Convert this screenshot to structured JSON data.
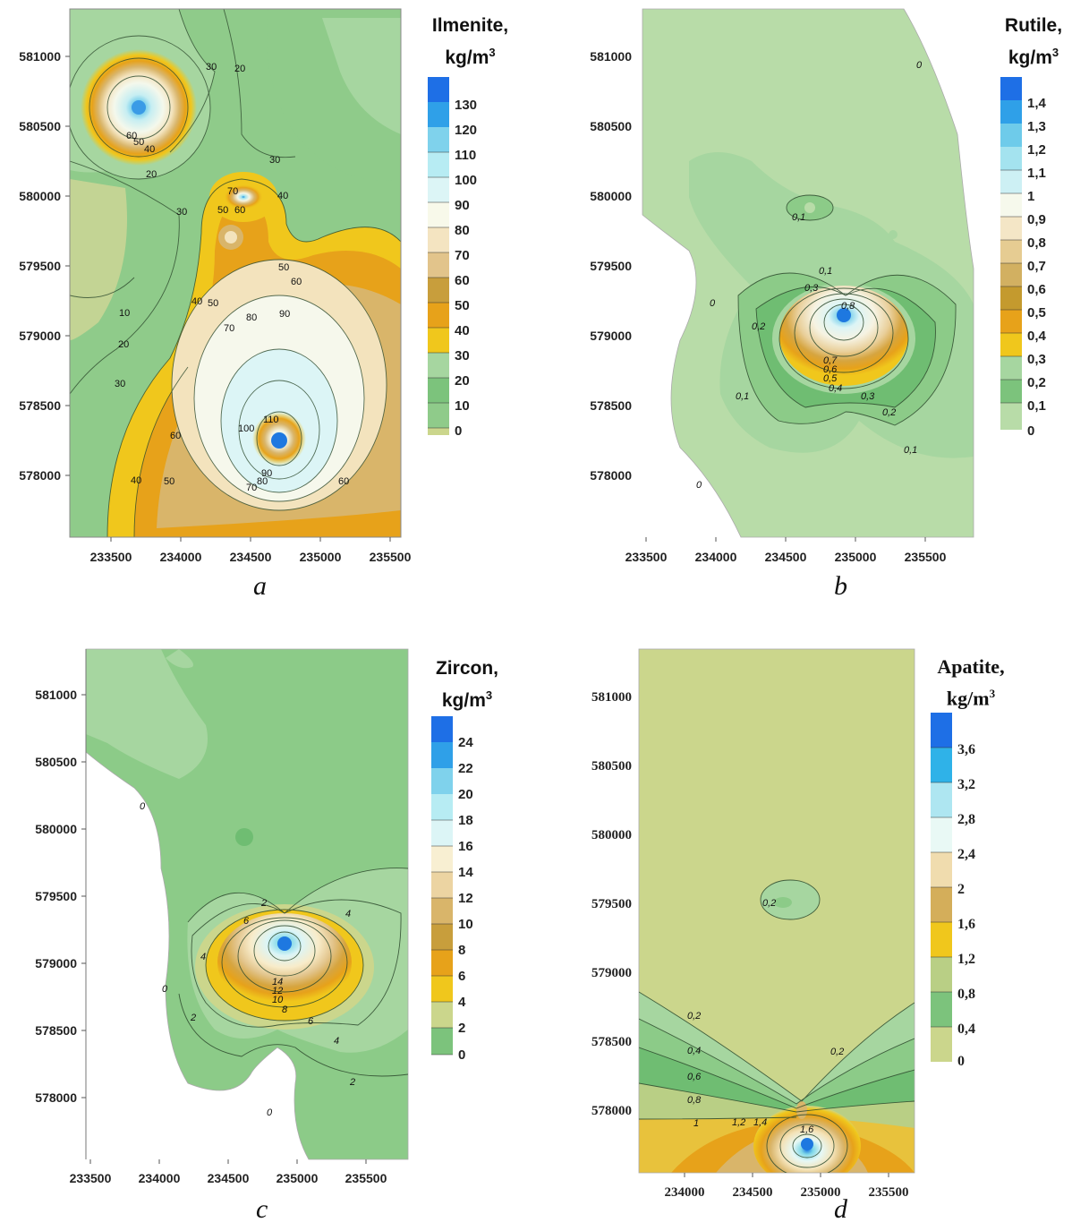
{
  "panels": {
    "a": {
      "caption": "a",
      "legend_title_line1": "Ilmenite,",
      "legend_title_line2": "kg/m",
      "legend_title_sup": "3",
      "legend_values": [
        "130",
        "120",
        "110",
        "100",
        "90",
        "80",
        "70",
        "60",
        "50",
        "40",
        "30",
        "20",
        "10",
        "0"
      ],
      "x_ticks": [
        "233500",
        "234000",
        "234500",
        "235000",
        "235500"
      ],
      "y_ticks": [
        "581000",
        "580500",
        "580000",
        "579500",
        "579000",
        "578500",
        "578000"
      ],
      "contour_labels": [
        "30",
        "20",
        "60",
        "50",
        "40",
        "20",
        "30",
        "70",
        "50",
        "60",
        "30",
        "40",
        "50",
        "60",
        "40",
        "50",
        "70",
        "80",
        "90",
        "10",
        "20",
        "30",
        "100",
        "110",
        "60",
        "90",
        "80",
        "70",
        "40",
        "50",
        "60"
      ]
    },
    "b": {
      "caption": "b",
      "legend_title_line1": "Rutile,",
      "legend_title_line2": "kg/m",
      "legend_title_sup": "3",
      "legend_values": [
        "1,4",
        "1,3",
        "1,2",
        "1,1",
        "1",
        "0,9",
        "0,8",
        "0,7",
        "0,6",
        "0,5",
        "0,4",
        "0,3",
        "0,2",
        "0,1",
        "0"
      ],
      "x_ticks": [
        "233500",
        "234000",
        "234500",
        "235000",
        "235500"
      ],
      "y_ticks": [
        "581000",
        "580500",
        "580000",
        "579500",
        "579000",
        "578500",
        "578000"
      ],
      "contour_labels": [
        "0",
        "0,1",
        "0",
        "0,1",
        "0,3",
        "0,8",
        "0,2",
        "0,7",
        "0,6",
        "0,5",
        "0,4",
        "0,3",
        "0,1",
        "0,2",
        "0,1",
        "0"
      ]
    },
    "c": {
      "caption": "c",
      "legend_title_line1": "Zircon,",
      "legend_title_line2": "kg/m",
      "legend_title_sup": "3",
      "legend_values": [
        "24",
        "22",
        "20",
        "18",
        "16",
        "14",
        "12",
        "10",
        "8",
        "6",
        "4",
        "2",
        "0"
      ],
      "x_ticks": [
        "233500",
        "234000",
        "234500",
        "235000",
        "235500"
      ],
      "y_ticks": [
        "581000",
        "580500",
        "580000",
        "579500",
        "579000",
        "578500",
        "578000"
      ],
      "contour_labels": [
        "0",
        "2",
        "4",
        "6",
        "4",
        "14",
        "12",
        "10",
        "8",
        "6",
        "0",
        "2",
        "4",
        "2",
        "0"
      ]
    },
    "d": {
      "caption": "d",
      "legend_title_line1": "Apatite,",
      "legend_title_line2": "kg/m",
      "legend_title_sup": "3",
      "legend_values": [
        "3,6",
        "3,2",
        "2,8",
        "2,4",
        "2",
        "1,6",
        "1,2",
        "0,8",
        "0,4",
        "0"
      ],
      "x_ticks": [
        "234000",
        "234500",
        "235000",
        "235500"
      ],
      "y_ticks": [
        "581000",
        "580500",
        "580000",
        "579500",
        "579000",
        "578500",
        "578000"
      ],
      "contour_labels": [
        "0,2",
        "0,2",
        "0,4",
        "0,6",
        "0,8",
        "1",
        "1,2",
        "1,4",
        "1,6",
        "0,2"
      ]
    }
  },
  "colors": {
    "ramp_low": "#cbd68c",
    "green_light": "#a6d6a0",
    "green_mid": "#8ccb88",
    "green_dark": "#6fbd72",
    "yellow": "#f0c71c",
    "orange": "#e7a21a",
    "tan": "#d9b56a",
    "cream": "#f8ecca",
    "ice": "#dcf5f6",
    "cyan": "#7fd8e8",
    "blue": "#1e78e0"
  }
}
